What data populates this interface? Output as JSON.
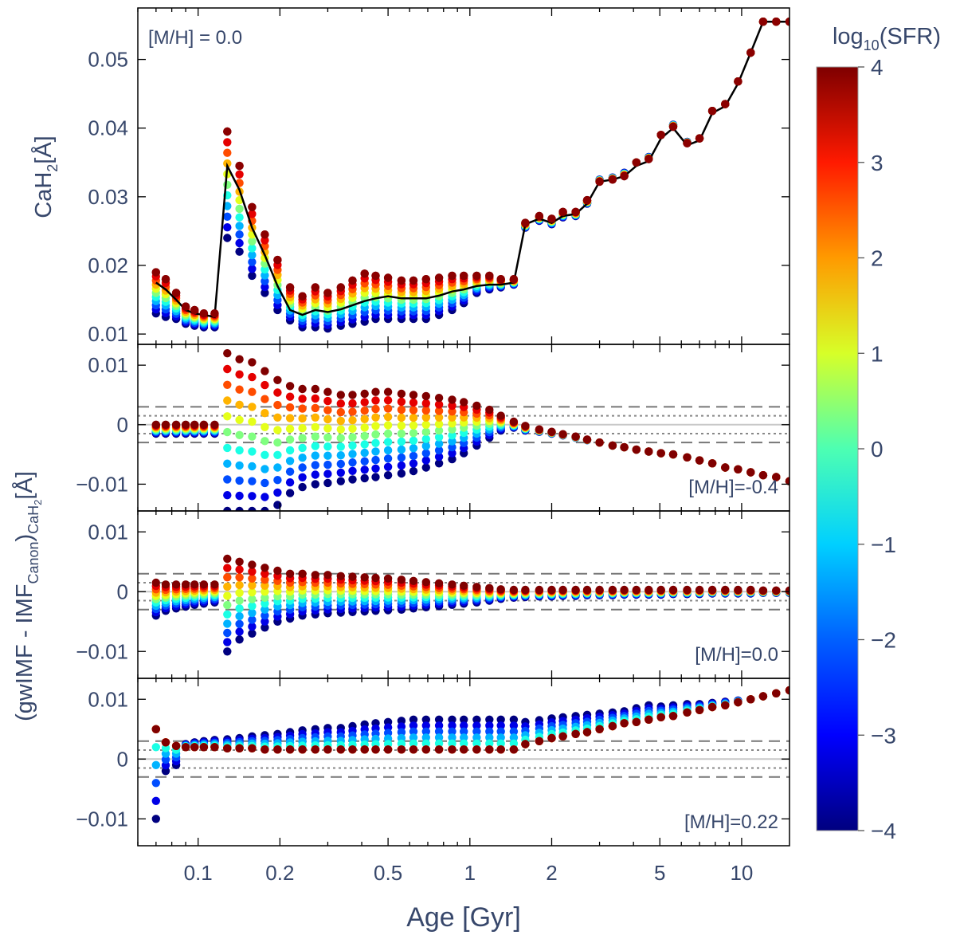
{
  "chart_data": {
    "type": "scatter",
    "x_axis": {
      "label": "Age [Gyr]",
      "scale": "log",
      "xlim": [
        0.06,
        15
      ],
      "ticks": [
        0.1,
        0.2,
        0.5,
        1,
        2,
        5,
        10
      ],
      "tick_labels": [
        "0.1",
        "0.2",
        "0.5",
        "1",
        "2",
        "5",
        "10"
      ]
    },
    "shared_ylabel_lower": "(gwIMF - IMF_Canon)_CaH2[Å]",
    "colorbar": {
      "label": "log10(SFR)",
      "range": [
        -4,
        4
      ],
      "ticks": [
        4,
        3,
        2,
        1,
        0,
        -1,
        -2,
        -3,
        -4
      ],
      "tick_labels": [
        "4",
        "3",
        "2",
        "1",
        "0",
        "−1",
        "−2",
        "−3",
        "−4"
      ],
      "colormap": "jet",
      "colors": [
        "#00007f",
        "#0000ff",
        "#007fff",
        "#00ffff",
        "#7fff7f",
        "#ffff00",
        "#ff7f00",
        "#ff0000",
        "#7f0000"
      ]
    },
    "panels": [
      {
        "id": "top",
        "annotation": "[M/H] = 0.0",
        "annotation_position": "top-left",
        "ylabel": "CaH2[Å]",
        "ylim": [
          0.0085,
          0.0575
        ],
        "yticks": [
          0.01,
          0.02,
          0.03,
          0.04,
          0.05
        ],
        "ytick_labels": [
          "0.01",
          "0.02",
          "0.03",
          "0.04",
          "0.05"
        ],
        "line_color": "#000000",
        "ages": [
          0.07,
          0.076,
          0.083,
          0.09,
          0.097,
          0.105,
          0.115,
          0.128,
          0.142,
          0.158,
          0.176,
          0.196,
          0.218,
          0.242,
          0.27,
          0.3,
          0.335,
          0.37,
          0.41,
          0.45,
          0.5,
          0.56,
          0.62,
          0.69,
          0.77,
          0.86,
          0.95,
          1.06,
          1.18,
          1.3,
          1.45,
          1.6,
          1.8,
          2.0,
          2.2,
          2.45,
          2.7,
          3.0,
          3.35,
          3.7,
          4.1,
          4.55,
          5.05,
          5.6,
          6.3,
          7.0,
          7.8,
          8.7,
          9.7,
          10.8,
          12.0,
          13.4,
          15.0
        ],
        "reference": [
          0.0175,
          0.0165,
          0.015,
          0.0135,
          0.013,
          0.0128,
          0.0125,
          0.0345,
          0.031,
          0.0255,
          0.0215,
          0.017,
          0.0135,
          0.0128,
          0.0135,
          0.0132,
          0.0136,
          0.0142,
          0.0148,
          0.0152,
          0.0155,
          0.0152,
          0.0152,
          0.0152,
          0.0156,
          0.0162,
          0.0165,
          0.017,
          0.0172,
          0.0172,
          0.0175,
          0.026,
          0.0268,
          0.0262,
          0.0272,
          0.0275,
          0.029,
          0.0322,
          0.0325,
          0.033,
          0.0345,
          0.0352,
          0.0385,
          0.04,
          0.0375,
          0.0382,
          0.0422,
          0.0432,
          0.0465,
          0.051,
          0.0555,
          0.0555,
          0.0555
        ],
        "sfr_max_value": [
          0.019,
          0.018,
          0.016,
          0.014,
          0.0135,
          0.013,
          0.013,
          0.0395,
          0.0345,
          0.0285,
          0.0245,
          0.0208,
          0.0168,
          0.0155,
          0.0168,
          0.016,
          0.0168,
          0.0178,
          0.0188,
          0.0185,
          0.0182,
          0.0178,
          0.0178,
          0.018,
          0.0182,
          0.0185,
          0.0185,
          0.0185,
          0.0185,
          0.018,
          0.018,
          0.0262,
          0.0272,
          0.0268,
          0.0278,
          0.0278,
          0.0295,
          0.0322,
          0.0325,
          0.033,
          0.035,
          0.0355,
          0.039,
          0.0402,
          0.0378,
          0.0385,
          0.0425,
          0.0435,
          0.0468,
          0.051,
          0.0555,
          0.0555,
          0.0555
        ],
        "sfr_min_value": [
          0.013,
          0.0125,
          0.0122,
          0.0115,
          0.0112,
          0.011,
          0.011,
          0.024,
          0.022,
          0.0185,
          0.016,
          0.0135,
          0.012,
          0.011,
          0.011,
          0.0108,
          0.0112,
          0.0115,
          0.0118,
          0.0122,
          0.0122,
          0.0122,
          0.0122,
          0.0122,
          0.0128,
          0.0135,
          0.0145,
          0.016,
          0.0165,
          0.0168,
          0.0172,
          0.0255,
          0.0265,
          0.026,
          0.027,
          0.0272,
          0.029,
          0.0325,
          0.0328,
          0.0335,
          0.035,
          0.0358,
          0.039,
          0.0405,
          0.038,
          0.0385,
          0.0425,
          0.0435,
          0.0468,
          0.051,
          0.0555,
          0.0555,
          0.0555
        ]
      },
      {
        "id": "mh_minus_0_4",
        "annotation": "[M/H]=-0.4",
        "annotation_position": "bottom-right",
        "ylim": [
          -0.0145,
          0.0135
        ],
        "yticks": [
          -0.01,
          0,
          0.01
        ],
        "ytick_labels": [
          "−0.01",
          "0",
          "0.01"
        ],
        "dashed_lines": [
          0.003,
          -0.003
        ],
        "dotted_lines": [
          0.0015,
          -0.0015
        ],
        "ages": [
          0.07,
          0.076,
          0.083,
          0.09,
          0.097,
          0.105,
          0.115,
          0.128,
          0.142,
          0.158,
          0.176,
          0.196,
          0.218,
          0.242,
          0.27,
          0.3,
          0.335,
          0.37,
          0.41,
          0.45,
          0.5,
          0.56,
          0.62,
          0.69,
          0.77,
          0.86,
          0.95,
          1.06,
          1.18,
          1.3,
          1.45,
          1.6,
          1.8,
          2.0,
          2.2,
          2.45,
          2.7,
          3.0,
          3.35,
          3.7,
          4.1,
          4.55,
          5.05,
          5.6,
          6.3,
          7.0,
          7.8,
          8.7,
          9.7,
          10.8,
          12.0,
          13.4,
          15.0
        ],
        "sfr_max_value": [
          0.0,
          0.0,
          0.0,
          0.0,
          0.0,
          0.0,
          0.0,
          0.012,
          0.011,
          0.0105,
          0.009,
          0.0075,
          0.0065,
          0.006,
          0.006,
          0.0055,
          0.005,
          0.005,
          0.0052,
          0.0055,
          0.0055,
          0.0052,
          0.005,
          0.0048,
          0.0045,
          0.0042,
          0.0038,
          0.0032,
          0.0025,
          0.0015,
          0.0005,
          -0.0002,
          -0.0008,
          -0.0012,
          -0.0016,
          -0.002,
          -0.0025,
          -0.003,
          -0.0035,
          -0.0038,
          -0.0042,
          -0.0045,
          -0.0048,
          -0.005,
          -0.0055,
          -0.006,
          -0.0065,
          -0.0072,
          -0.0075,
          -0.008,
          -0.0085,
          -0.0088,
          -0.0095
        ],
        "sfr_min_value": [
          -0.0015,
          -0.0015,
          -0.0015,
          -0.0015,
          -0.0015,
          -0.0015,
          -0.0015,
          -0.0145,
          -0.0145,
          -0.0145,
          -0.0145,
          -0.0135,
          -0.0115,
          -0.0105,
          -0.01,
          -0.0098,
          -0.0095,
          -0.0092,
          -0.009,
          -0.0088,
          -0.0085,
          -0.0082,
          -0.0078,
          -0.0072,
          -0.0065,
          -0.0058,
          -0.0048,
          -0.0035,
          -0.0022,
          -0.001,
          -0.0005,
          -0.001,
          -0.0012,
          -0.0015,
          -0.0018,
          -0.0022,
          -0.0026,
          -0.003,
          -0.0035,
          -0.0038,
          -0.0042,
          -0.0045,
          -0.0048,
          -0.005,
          -0.0055,
          -0.006,
          -0.0065,
          -0.0072,
          -0.0075,
          -0.008,
          -0.0085,
          -0.0088,
          -0.0095
        ]
      },
      {
        "id": "mh_0_0",
        "annotation": "[M/H]=0.0",
        "annotation_position": "bottom-right",
        "ylim": [
          -0.0145,
          0.0135
        ],
        "yticks": [
          -0.01,
          0,
          0.01
        ],
        "ytick_labels": [
          "−0.01",
          "0",
          "0.01"
        ],
        "dashed_lines": [
          0.003,
          -0.003
        ],
        "dotted_lines": [
          0.0015,
          -0.0015
        ],
        "ages": [
          0.07,
          0.076,
          0.083,
          0.09,
          0.097,
          0.105,
          0.115,
          0.128,
          0.142,
          0.158,
          0.176,
          0.196,
          0.218,
          0.242,
          0.27,
          0.3,
          0.335,
          0.37,
          0.41,
          0.45,
          0.5,
          0.56,
          0.62,
          0.69,
          0.77,
          0.86,
          0.95,
          1.06,
          1.18,
          1.3,
          1.45,
          1.6,
          1.8,
          2.0,
          2.2,
          2.45,
          2.7,
          3.0,
          3.35,
          3.7,
          4.1,
          4.55,
          5.05,
          5.6,
          6.3,
          7.0,
          7.8,
          8.7,
          9.7,
          10.8,
          12.0,
          13.4,
          15.0
        ],
        "sfr_max_value": [
          0.0015,
          0.0012,
          0.0012,
          0.0012,
          0.0012,
          0.0012,
          0.0012,
          0.0055,
          0.005,
          0.0045,
          0.004,
          0.0035,
          0.003,
          0.003,
          0.0028,
          0.0028,
          0.0026,
          0.0025,
          0.0024,
          0.0023,
          0.0022,
          0.002,
          0.0018,
          0.0016,
          0.0014,
          0.0012,
          0.001,
          0.0008,
          0.0006,
          0.0004,
          0.0003,
          0.0003,
          0.0003,
          0.0003,
          0.0003,
          0.0003,
          0.0003,
          0.0003,
          0.0003,
          0.0003,
          0.0003,
          0.0003,
          0.0003,
          0.0003,
          0.0003,
          0.0003,
          0.0003,
          0.0003,
          0.0003,
          0.0003,
          0.0002,
          0.0002,
          0.0002
        ],
        "sfr_min_value": [
          -0.004,
          -0.0032,
          -0.0028,
          -0.0025,
          -0.0022,
          -0.002,
          -0.0018,
          -0.01,
          -0.008,
          -0.007,
          -0.006,
          -0.005,
          -0.0045,
          -0.004,
          -0.0038,
          -0.0036,
          -0.0035,
          -0.0034,
          -0.0033,
          -0.0032,
          -0.0031,
          -0.003,
          -0.0028,
          -0.0026,
          -0.0024,
          -0.0022,
          -0.002,
          -0.0018,
          -0.0015,
          -0.0012,
          -0.001,
          -0.0009,
          -0.0008,
          -0.0008,
          -0.0007,
          -0.0007,
          -0.0006,
          -0.0006,
          -0.0006,
          -0.0005,
          -0.0005,
          -0.0005,
          -0.0005,
          -0.0004,
          -0.0004,
          -0.0004,
          -0.0003,
          -0.0003,
          -0.0003,
          -0.0003,
          -0.0002,
          -0.0002,
          -0.0002
        ]
      },
      {
        "id": "mh_0_22",
        "annotation": "[M/H]=0.22",
        "annotation_position": "bottom-right",
        "ylim": [
          -0.0145,
          0.0135
        ],
        "yticks": [
          -0.01,
          0,
          0.01
        ],
        "ytick_labels": [
          "−0.01",
          "0",
          "0.01"
        ],
        "dashed_lines": [
          0.003,
          -0.003
        ],
        "dotted_lines": [
          0.0015,
          -0.0015
        ],
        "ages": [
          0.07,
          0.076,
          0.083,
          0.09,
          0.097,
          0.105,
          0.115,
          0.128,
          0.142,
          0.158,
          0.176,
          0.196,
          0.218,
          0.242,
          0.27,
          0.3,
          0.335,
          0.37,
          0.41,
          0.45,
          0.5,
          0.56,
          0.62,
          0.69,
          0.77,
          0.86,
          0.95,
          1.06,
          1.18,
          1.3,
          1.45,
          1.6,
          1.8,
          2.0,
          2.2,
          2.45,
          2.7,
          3.0,
          3.35,
          3.7,
          4.1,
          4.55,
          5.05,
          5.6,
          6.3,
          7.0,
          7.8,
          8.7,
          9.7,
          10.8,
          12.0,
          13.4,
          15.0
        ],
        "sfr_max_value": [
          0.005,
          0.0028,
          0.0022,
          0.002,
          0.002,
          0.002,
          0.002,
          0.0018,
          0.0018,
          0.0018,
          0.0016,
          0.0016,
          0.0016,
          0.0016,
          0.0016,
          0.0016,
          0.0016,
          0.0016,
          0.0016,
          0.0016,
          0.0016,
          0.0016,
          0.0016,
          0.0016,
          0.0016,
          0.0016,
          0.0016,
          0.0016,
          0.0016,
          0.0016,
          0.0016,
          0.0025,
          0.003,
          0.0035,
          0.0038,
          0.0042,
          0.0045,
          0.005,
          0.0055,
          0.006,
          0.0062,
          0.0066,
          0.007,
          0.0072,
          0.0078,
          0.0082,
          0.0087,
          0.009,
          0.0095,
          0.01,
          0.0105,
          0.011,
          0.0115
        ],
        "sfr_min_value": [
          -0.01,
          -0.002,
          -0.001,
          0.0012,
          0.0015,
          0.0016,
          0.0017,
          0.0015,
          0.0016,
          0.0016,
          0.0016,
          0.0016,
          0.0016,
          0.0016,
          0.0016,
          0.0016,
          0.0016,
          0.0016,
          0.0016,
          0.0016,
          0.0016,
          0.0016,
          0.0016,
          0.0016,
          0.0016,
          0.0016,
          0.0016,
          0.0016,
          0.0016,
          0.0016,
          0.0016,
          0.0025,
          0.003,
          0.0035,
          0.0038,
          0.0042,
          0.0045,
          0.005,
          0.0055,
          0.006,
          0.0062,
          0.0066,
          0.007,
          0.0072,
          0.0078,
          0.0082,
          0.0087,
          0.009,
          0.0095,
          0.01,
          0.0105,
          0.011,
          0.0115
        ],
        "sfr_high_extent": [
          0.005,
          0.003,
          0.0025,
          0.0025,
          0.0028,
          0.003,
          0.0032,
          0.0033,
          0.0035,
          0.0038,
          0.004,
          0.0042,
          0.0045,
          0.0048,
          0.005,
          0.0052,
          0.0052,
          0.0055,
          0.0058,
          0.006,
          0.0062,
          0.0064,
          0.0066,
          0.0066,
          0.0066,
          0.0066,
          0.0066,
          0.0066,
          0.0066,
          0.0066,
          0.0066,
          0.0062,
          0.0065,
          0.0068,
          0.007,
          0.0072,
          0.0074,
          0.0076,
          0.0078,
          0.008,
          0.0085,
          0.009,
          0.0088,
          0.009,
          0.0092,
          0.0092,
          0.0094,
          0.0096,
          0.0098,
          0.01,
          0.0105,
          0.011,
          0.0115
        ]
      }
    ]
  },
  "labels": {
    "top_ylabel_main": "CaH",
    "top_ylabel_sub": "2",
    "top_ylabel_unit": "[Å]",
    "lower_ylabel_open": "(gwIMF - IMF",
    "lower_ylabel_sub1": "Canon",
    "lower_ylabel_close": ")",
    "lower_ylabel_sub2": "CaH",
    "lower_ylabel_sub3": "2",
    "lower_ylabel_unit": "[Å]",
    "xlabel": "Age [Gyr]",
    "colorbar_label_main": "log",
    "colorbar_label_sub": "10",
    "colorbar_label_rest": "(SFR)"
  },
  "colors": {
    "text": "#37476b",
    "axis": "#000000",
    "dashed": "#777777",
    "dotted": "#888888",
    "zero_line": "#c8c8c8"
  }
}
